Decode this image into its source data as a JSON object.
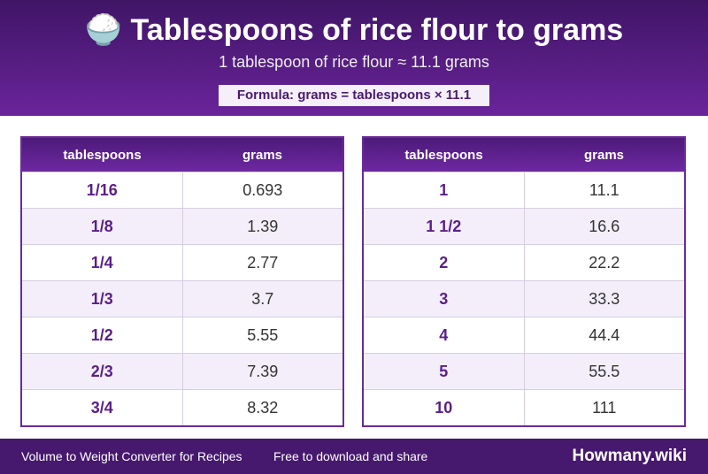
{
  "header": {
    "title": "🍚 Tablespoons of rice flour to grams",
    "subtitle": "1 tablespoon of rice flour ≈ 11.1 grams",
    "formula": "Formula: grams = tablespoons × 11.1"
  },
  "tables": [
    {
      "columns": [
        "tablespoons",
        "grams"
      ],
      "rows": [
        [
          "1/16",
          "0.693"
        ],
        [
          "1/8",
          "1.39"
        ],
        [
          "1/4",
          "2.77"
        ],
        [
          "1/3",
          "3.7"
        ],
        [
          "1/2",
          "5.55"
        ],
        [
          "2/3",
          "7.39"
        ],
        [
          "3/4",
          "8.32"
        ]
      ]
    },
    {
      "columns": [
        "tablespoons",
        "grams"
      ],
      "rows": [
        [
          "1",
          "11.1"
        ],
        [
          "1 1/2",
          "16.6"
        ],
        [
          "2",
          "22.2"
        ],
        [
          "3",
          "33.3"
        ],
        [
          "4",
          "44.4"
        ],
        [
          "5",
          "55.5"
        ],
        [
          "10",
          "111"
        ]
      ]
    }
  ],
  "footer": {
    "left": "Volume to Weight Converter for Recipes",
    "middle": "Free to download and share",
    "brand": "Howmany.wiki"
  }
}
